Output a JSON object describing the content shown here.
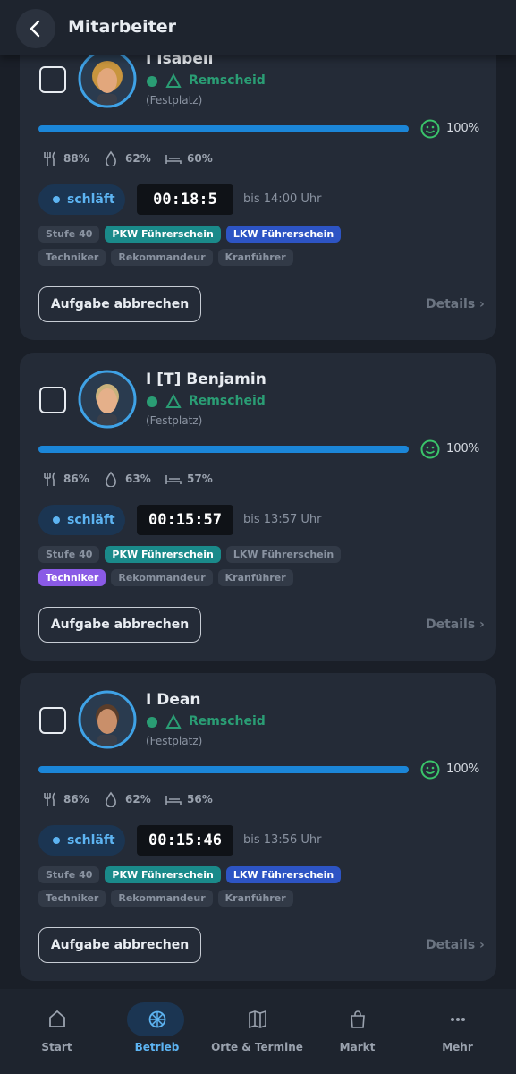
{
  "header": {
    "title": "Mitarbeiter"
  },
  "employees": [
    {
      "name": "I Isabell",
      "location": "Remscheid",
      "sublocation": "(Festplatz)",
      "progress": {
        "value": 100,
        "label": "100%"
      },
      "food": "88%",
      "drink": "62%",
      "sleep": "60%",
      "status": "schläft",
      "timer": "00:18:5",
      "until": "bis 14:00 Uhr",
      "tags": [
        {
          "text": "Stufe 40",
          "style": "gray"
        },
        {
          "text": "PKW Führerschein",
          "style": "teal"
        },
        {
          "text": "LKW Führerschein",
          "style": "blue"
        },
        {
          "text": "Techniker",
          "style": "gray"
        },
        {
          "text": "Rekommandeur",
          "style": "gray"
        },
        {
          "text": "Kranführer",
          "style": "gray"
        }
      ],
      "button": "Aufgabe abbrechen",
      "details": "Details ›"
    },
    {
      "name": "I [T] Benjamin",
      "location": "Remscheid",
      "sublocation": "(Festplatz)",
      "progress": {
        "value": 100,
        "label": "100%"
      },
      "food": "86%",
      "drink": "63%",
      "sleep": "57%",
      "status": "schläft",
      "timer": "00:15:57",
      "until": "bis 13:57 Uhr",
      "tags": [
        {
          "text": "Stufe 40",
          "style": "gray"
        },
        {
          "text": "PKW Führerschein",
          "style": "teal"
        },
        {
          "text": "LKW Führerschein",
          "style": "gray"
        },
        {
          "text": "Techniker",
          "style": "purple"
        },
        {
          "text": "Rekommandeur",
          "style": "gray"
        },
        {
          "text": "Kranführer",
          "style": "gray"
        }
      ],
      "button": "Aufgabe abbrechen",
      "details": "Details ›"
    },
    {
      "name": "I Dean",
      "location": "Remscheid",
      "sublocation": "(Festplatz)",
      "progress": {
        "value": 100,
        "label": "100%"
      },
      "food": "86%",
      "drink": "62%",
      "sleep": "56%",
      "status": "schläft",
      "timer": "00:15:46",
      "until": "bis 13:56 Uhr",
      "tags": [
        {
          "text": "Stufe 40",
          "style": "gray"
        },
        {
          "text": "PKW Führerschein",
          "style": "teal"
        },
        {
          "text": "LKW Führerschein",
          "style": "blue"
        },
        {
          "text": "Techniker",
          "style": "gray"
        },
        {
          "text": "Rekommandeur",
          "style": "gray"
        },
        {
          "text": "Kranführer",
          "style": "gray"
        }
      ],
      "button": "Aufgabe abbrechen",
      "details": "Details ›"
    }
  ],
  "nav": [
    {
      "label": "Start",
      "active": false
    },
    {
      "label": "Betrieb",
      "active": true
    },
    {
      "label": "Orte & Termine",
      "active": false
    },
    {
      "label": "Markt",
      "active": false
    },
    {
      "label": "Mehr",
      "active": false
    }
  ]
}
